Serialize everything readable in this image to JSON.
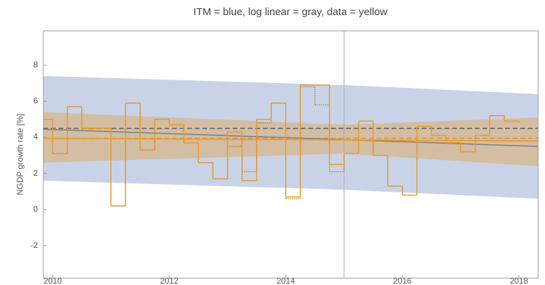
{
  "chart_data": {
    "type": "line",
    "title": "ITM = blue, log linear = gray, data = yellow",
    "y_label": "NGDP growth rate [%]",
    "xlim": [
      2009.84,
      2018.33
    ],
    "ylim": [
      -3.8,
      9.9
    ],
    "xticks": [
      2010,
      2012,
      2014,
      2016,
      2018
    ],
    "yticks": [
      -2,
      0,
      2,
      4,
      6,
      8
    ],
    "vline": 2015,
    "bands": [
      {
        "color": "#c9d3e8",
        "x": [
          2009.84,
          2015,
          2018.33
        ],
        "upper": [
          7.4,
          6.9,
          6.4
        ],
        "lower": [
          1.6,
          1.1,
          0.6
        ]
      },
      {
        "color": "#d6b58c",
        "x": [
          2009.84,
          2015,
          2018.33
        ],
        "upper": [
          5.4,
          4.7,
          5.1
        ],
        "lower": [
          2.6,
          3.1,
          2.4
        ]
      }
    ],
    "series": [
      {
        "style": "dashed",
        "color": "#666666",
        "x": [
          2009.84,
          2018.33
        ],
        "values": [
          4.5,
          4.5
        ]
      },
      {
        "style": "dashed",
        "color": "#e69a2a",
        "x": [
          2009.84,
          2018.33
        ],
        "values": [
          3.95,
          3.95
        ]
      },
      {
        "style": "solid",
        "color": "#808080",
        "x": [
          2009.84,
          2018.33
        ],
        "values": [
          4.45,
          3.5
        ]
      },
      {
        "style": "solid",
        "color": "#e69a2a",
        "x": [
          2009.84,
          2018.33
        ],
        "values": [
          3.95,
          3.8
        ]
      },
      {
        "style": "dotted-step",
        "color": "#c98416",
        "x": [
          2010,
          2010.25,
          2010.5,
          2010.75,
          2011,
          2011.25,
          2011.5,
          2011.75,
          2012,
          2012.25,
          2012.5,
          2012.75,
          2013,
          2013.25,
          2013.5,
          2013.75,
          2014,
          2014.25,
          2014.5,
          2014.75,
          2015
        ],
        "values": [
          3.1,
          5.7,
          4.5,
          4.5,
          0.2,
          5.9,
          3.3,
          5.0,
          4.7,
          3.7,
          2.6,
          1.7,
          3.5,
          2.1,
          4.8,
          5.9,
          0.6,
          6.8,
          5.8,
          2.1,
          3.1
        ]
      },
      {
        "style": "step",
        "color": "#e69a2a",
        "x": [
          2009.75,
          2010,
          2010.25,
          2010.5,
          2010.75,
          2011,
          2011.25,
          2011.5,
          2011.75,
          2012,
          2012.25,
          2012.5,
          2012.75,
          2013,
          2013.25,
          2013.5,
          2013.75,
          2014,
          2014.25,
          2014.5,
          2014.75,
          2015,
          2015.25,
          2015.5,
          2015.75,
          2016,
          2016.25,
          2016.5,
          2016.75,
          2017,
          2017.25,
          2017.5,
          2017.75,
          2018
        ],
        "values": [
          5.0,
          3.1,
          5.7,
          4.5,
          4.5,
          0.2,
          5.9,
          3.3,
          5.0,
          4.7,
          3.7,
          2.6,
          1.7,
          4.3,
          1.6,
          5.0,
          5.9,
          0.7,
          6.9,
          6.9,
          2.5,
          3.1,
          4.9,
          3.0,
          1.3,
          0.8,
          4.6,
          4.1,
          3.7,
          3.2,
          4.1,
          5.2,
          4.9,
          4.8
        ]
      }
    ]
  }
}
